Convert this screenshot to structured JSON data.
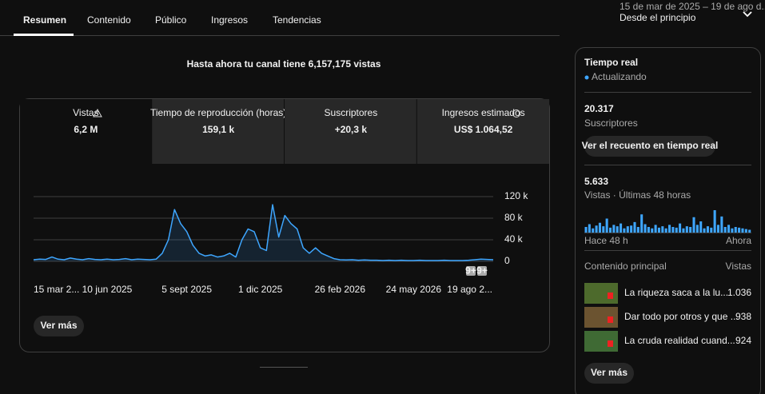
{
  "tabs": [
    "Resumen",
    "Contenido",
    "Público",
    "Ingresos",
    "Tendencias"
  ],
  "date_range": {
    "range": "15 de mar de 2025 – 19 de ago d...",
    "label": "Desde el principio"
  },
  "headline": "Hasta ahora tu canal tiene 6,157,175 vistas",
  "metrics": [
    {
      "label": "Vistas",
      "value": "6,2 M"
    },
    {
      "label": "Tiempo de reproducción (horas)",
      "value": "159,1 k"
    },
    {
      "label": "Suscriptores",
      "value": "+20,3 k"
    },
    {
      "label": "Ingresos estimados",
      "value": "US$ 1.064,52"
    }
  ],
  "chart_data": {
    "type": "line",
    "color": "#3ea6ff",
    "categories": [
      "15 mar 2...",
      null,
      null,
      null,
      null,
      null,
      null,
      null,
      null,
      null,
      null,
      null,
      "10 jun 2025",
      null,
      null,
      null,
      null,
      null,
      null,
      null,
      null,
      null,
      null,
      null,
      null,
      "5 sept 2025",
      null,
      null,
      null,
      null,
      null,
      null,
      null,
      null,
      null,
      null,
      null,
      "1 dic 2025",
      null,
      null,
      null,
      null,
      null,
      null,
      null,
      null,
      null,
      null,
      null,
      null,
      "26 feb 2026",
      null,
      null,
      null,
      null,
      null,
      null,
      null,
      null,
      null,
      null,
      null,
      "24 may 2026",
      null,
      null,
      null,
      null,
      null,
      null,
      null,
      null,
      null,
      null,
      null,
      null,
      "19 ago 2..."
    ],
    "values": [
      3000,
      4000,
      3500,
      8000,
      4000,
      3000,
      6000,
      4000,
      3000,
      5000,
      3500,
      3000,
      4000,
      3000,
      3500,
      5000,
      3000,
      4000,
      3500,
      3000,
      4000,
      15000,
      40000,
      96000,
      70000,
      55000,
      30000,
      15000,
      10000,
      12000,
      8000,
      10000,
      15000,
      8000,
      40000,
      60000,
      55000,
      25000,
      20000,
      105000,
      45000,
      85000,
      70000,
      60000,
      25000,
      15000,
      25000,
      15000,
      10000,
      5000,
      3000,
      2500,
      3000,
      2000,
      2500,
      2000,
      2000,
      1500,
      2000,
      1500,
      2000,
      1500,
      1500,
      2000,
      1500,
      1500,
      1500,
      2000,
      1500,
      1500,
      1500,
      2000,
      3000,
      4000,
      3500,
      3000
    ],
    "ylim": [
      0,
      120000
    ],
    "yticks": [
      {
        "value": 0,
        "label": "0"
      },
      {
        "value": 40000,
        "label": "40 k"
      },
      {
        "value": 80000,
        "label": "80 k"
      },
      {
        "value": 120000,
        "label": "120 k"
      }
    ],
    "grid": true,
    "annotations": [
      "9+",
      "9+"
    ]
  },
  "more_button": "Ver más",
  "realtime": {
    "title": "Tiempo real",
    "status": "Actualizando",
    "subscribers": {
      "value": "20.317",
      "label": "Suscriptores"
    },
    "realtime_button": "Ver el recuento en tiempo real",
    "views": {
      "value": "5.633",
      "label": "Vistas · Últimas 48 horas"
    },
    "chart": {
      "type": "bar",
      "color": "#3ea6ff",
      "values": [
        80,
        120,
        60,
        100,
        140,
        90,
        200,
        70,
        110,
        90,
        130,
        60,
        90,
        100,
        150,
        80,
        260,
        120,
        80,
        60,
        110,
        70,
        90,
        60,
        110,
        80,
        70,
        130,
        60,
        90,
        80,
        220,
        110,
        160,
        60,
        90,
        70,
        320,
        110,
        230,
        80,
        110,
        60,
        80,
        70,
        60,
        50,
        40
      ],
      "start": "Hace 48 h",
      "end": "Ahora"
    },
    "top_content": {
      "header": "Contenido principal",
      "column": "Vistas",
      "rows": [
        {
          "title": "La riqueza saca a la lu...",
          "views": "1.036"
        },
        {
          "title": "Dar todo por otros y que ...",
          "views": "938"
        },
        {
          "title": "La cruda realidad cuand...",
          "views": "924"
        }
      ]
    },
    "more_button": "Ver más"
  }
}
